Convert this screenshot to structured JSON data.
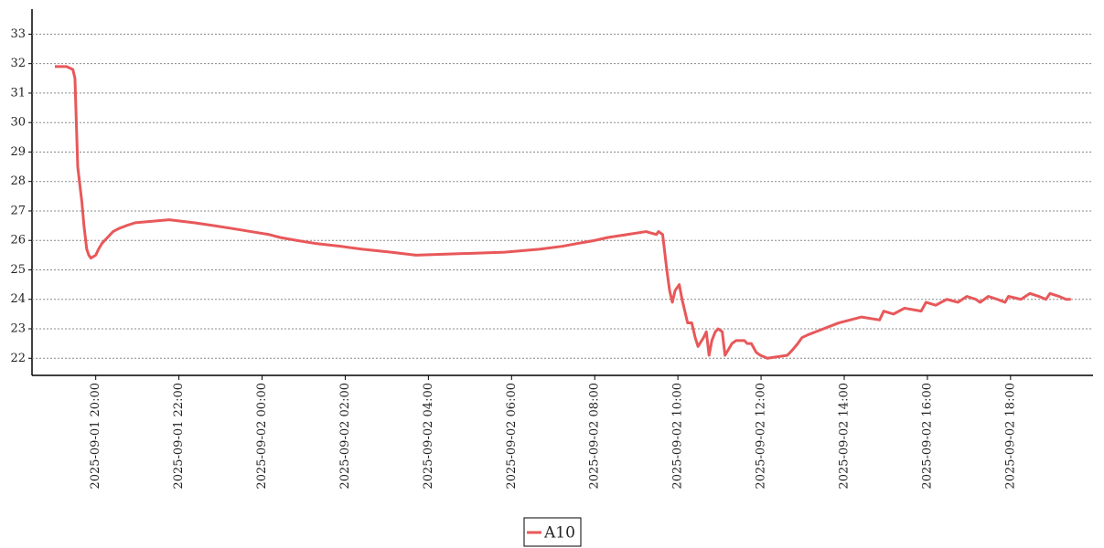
{
  "chart_data": {
    "type": "line",
    "x": [
      "2025-09-01 19:01",
      "2025-09-01 19:18",
      "2025-09-01 19:27",
      "2025-09-01 19:30",
      "2025-09-01 19:34",
      "2025-09-01 19:40",
      "2025-09-01 19:43",
      "2025-09-01 19:47",
      "2025-09-01 19:50",
      "2025-09-01 19:53",
      "2025-09-01 20:00",
      "2025-09-01 20:04",
      "2025-09-01 20:09",
      "2025-09-01 20:17",
      "2025-09-01 20:25",
      "2025-09-01 20:33",
      "2025-09-01 20:44",
      "2025-09-01 20:57",
      "2025-09-01 21:46",
      "2025-09-01 22:22",
      "2025-09-01 22:51",
      "2025-09-01 23:18",
      "2025-09-01 23:44",
      "2025-09-02 00:10",
      "2025-09-02 00:26",
      "2025-09-02 00:50",
      "2025-09-02 01:16",
      "2025-09-02 01:53",
      "2025-09-02 02:25",
      "2025-09-02 03:06",
      "2025-09-02 03:42",
      "2025-09-02 05:50",
      "2025-09-02 06:40",
      "2025-09-02 07:13",
      "2025-09-02 07:36",
      "2025-09-02 08:00",
      "2025-09-02 08:19",
      "2025-09-02 08:47",
      "2025-09-02 09:14",
      "2025-09-02 09:29",
      "2025-09-02 09:32",
      "2025-09-02 09:38",
      "2025-09-02 09:44",
      "2025-09-02 09:48",
      "2025-09-02 09:52",
      "2025-09-02 09:56",
      "2025-09-02 10:02",
      "2025-09-02 10:06",
      "2025-09-02 10:10",
      "2025-09-02 10:14",
      "2025-09-02 10:20",
      "2025-09-02 10:25",
      "2025-09-02 10:29",
      "2025-09-02 10:37",
      "2025-09-02 10:41",
      "2025-09-02 10:45",
      "2025-09-02 10:49",
      "2025-09-02 10:54",
      "2025-09-02 10:58",
      "2025-09-02 11:04",
      "2025-09-02 11:08",
      "2025-09-02 11:13",
      "2025-09-02 11:18",
      "2025-09-02 11:24",
      "2025-09-02 11:36",
      "2025-09-02 11:40",
      "2025-09-02 11:46",
      "2025-09-02 11:53",
      "2025-09-02 11:59",
      "2025-09-02 12:09",
      "2025-09-02 12:38",
      "2025-09-02 12:46",
      "2025-09-02 12:53",
      "2025-09-02 12:59",
      "2025-09-02 13:08",
      "2025-09-02 13:19",
      "2025-09-02 13:52",
      "2025-09-02 14:25",
      "2025-09-02 14:51",
      "2025-09-02 14:57",
      "2025-09-02 15:11",
      "2025-09-02 15:27",
      "2025-09-02 15:51",
      "2025-09-02 15:58",
      "2025-09-02 16:12",
      "2025-09-02 16:28",
      "2025-09-02 16:44",
      "2025-09-02 16:57",
      "2025-09-02 17:10",
      "2025-09-02 17:16",
      "2025-09-02 17:28",
      "2025-09-02 17:41",
      "2025-09-02 17:52",
      "2025-09-02 17:57",
      "2025-09-02 18:15",
      "2025-09-02 18:28",
      "2025-09-02 18:41",
      "2025-09-02 18:51",
      "2025-09-02 18:57",
      "2025-09-02 19:10",
      "2025-09-02 19:20",
      "2025-09-02 19:27"
    ],
    "series": [
      {
        "name": "A10",
        "color": "#e8585a",
        "values": [
          31.9,
          31.9,
          31.8,
          31.5,
          28.5,
          27.3,
          26.5,
          25.7,
          25.5,
          25.4,
          25.5,
          25.7,
          25.9,
          26.1,
          26.3,
          26.4,
          26.5,
          26.6,
          26.7,
          26.6,
          26.5,
          26.4,
          26.3,
          26.2,
          26.1,
          26.0,
          25.9,
          25.8,
          25.7,
          25.6,
          25.5,
          25.6,
          25.7,
          25.8,
          25.9,
          26.0,
          26.1,
          26.2,
          26.3,
          26.2,
          26.3,
          26.2,
          25.0,
          24.3,
          23.9,
          24.3,
          24.5,
          24.0,
          23.6,
          23.2,
          23.2,
          22.7,
          22.4,
          22.7,
          22.9,
          22.1,
          22.6,
          22.9,
          23.0,
          22.9,
          22.1,
          22.3,
          22.5,
          22.6,
          22.6,
          22.5,
          22.5,
          22.2,
          22.1,
          22.0,
          22.1,
          22.3,
          22.5,
          22.7,
          22.8,
          22.9,
          23.2,
          23.4,
          23.3,
          23.6,
          23.5,
          23.7,
          23.6,
          23.9,
          23.8,
          24.0,
          23.9,
          24.1,
          24.0,
          23.9,
          24.1,
          24.0,
          23.9,
          24.1,
          24.0,
          24.2,
          24.1,
          24.0,
          24.2,
          24.1,
          24.0,
          24.0
        ]
      }
    ],
    "xlim": [
      "2025-09-01 18:32",
      "2025-09-02 19:59"
    ],
    "xticks": [
      "2025-09-01 20:00",
      "2025-09-01 22:00",
      "2025-09-02 00:00",
      "2025-09-02 02:00",
      "2025-09-02 04:00",
      "2025-09-02 06:00",
      "2025-09-02 08:00",
      "2025-09-02 10:00",
      "2025-09-02 12:00",
      "2025-09-02 14:00",
      "2025-09-02 16:00",
      "2025-09-02 18:00"
    ],
    "ylim": [
      21.45,
      33.85
    ],
    "yticks": [
      22,
      23,
      24,
      25,
      26,
      27,
      28,
      29,
      30,
      31,
      32,
      33
    ],
    "grid": true
  }
}
